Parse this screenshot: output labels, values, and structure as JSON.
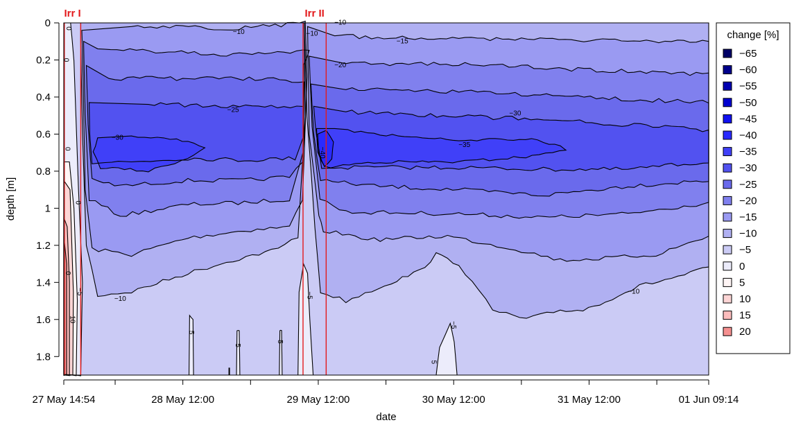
{
  "chart_data": {
    "type": "heatmap",
    "subtype": "filled-contour",
    "title": "",
    "xlabel": "date",
    "ylabel": "depth [m]",
    "x_ticks": [
      "27 May 14:54",
      "28 May 12:00",
      "29 May 12:00",
      "30 May 12:00",
      "31 May 12:00",
      "01 Jun 09:14"
    ],
    "x_tick_hours": [
      0,
      21.1,
      45.1,
      69.1,
      93.1,
      114.3
    ],
    "x_minor_tick_hours": [
      9.1,
      33.1,
      57.1,
      81.1,
      105.1
    ],
    "xlim_hours": [
      0,
      114.3
    ],
    "y_ticks": [
      "0",
      "0.2",
      "0.4",
      "0.6",
      "0.8",
      "1",
      "1.2",
      "1.4",
      "1.6",
      "1.8"
    ],
    "y_tick_values": [
      0,
      0.2,
      0.4,
      0.6,
      0.8,
      1.0,
      1.2,
      1.4,
      1.6,
      1.8
    ],
    "ylim": [
      1.9,
      0
    ],
    "y_reversed": true,
    "legend": {
      "title": "change [%]",
      "position": "right",
      "levels": [
        "−65",
        "−60",
        "−55",
        "−50",
        "−45",
        "−40",
        "−35",
        "−30",
        "−25",
        "−20",
        "−15",
        "−10",
        "−5",
        "0",
        "5",
        "10",
        "15",
        "20"
      ],
      "colors": [
        "#000066",
        "#00008b",
        "#0000b0",
        "#0000d0",
        "#1010f0",
        "#2a2aff",
        "#4040f8",
        "#5252f0",
        "#6a6aec",
        "#8080ee",
        "#9a9af2",
        "#b0b0f2",
        "#cbcbf5",
        "#ececfb",
        "#fff5f5",
        "#fdd5d5",
        "#fbbcbc",
        "#f59090"
      ]
    },
    "events": [
      {
        "label": "Irr I",
        "start_hour": 0.1,
        "end_hour": 3.0,
        "color": "#e31a1c"
      },
      {
        "label": "Irr II",
        "start_hour": 42.4,
        "end_hour": 46.5,
        "color": "#e31a1c"
      }
    ],
    "contour_labels": [
      {
        "text": "−10",
        "hour": 10.0,
        "depth": 1.49
      },
      {
        "text": "−25",
        "hour": 30.0,
        "depth": 0.47
      },
      {
        "text": "−30",
        "hour": 9.5,
        "depth": 0.62
      },
      {
        "text": "−10",
        "hour": 31.0,
        "depth": 0.05
      },
      {
        "text": "−10",
        "hour": 44.0,
        "depth": 0.06
      },
      {
        "text": "−10",
        "hour": 49.0,
        "depth": 0.0
      },
      {
        "text": "−15",
        "hour": 60.0,
        "depth": 0.1
      },
      {
        "text": "−20",
        "hour": 49.0,
        "depth": 0.23
      },
      {
        "text": "−30",
        "hour": 80.0,
        "depth": 0.49
      },
      {
        "text": "−35",
        "hour": 71.0,
        "depth": 0.66
      },
      {
        "text": "−40",
        "hour": 45.8,
        "depth": 0.7
      },
      {
        "text": "−10",
        "hour": 101.0,
        "depth": 1.45
      },
      {
        "text": "−5",
        "hour": 2.8,
        "depth": 1.45
      },
      {
        "text": "−5",
        "hour": 43.5,
        "depth": 1.47
      },
      {
        "text": "−5",
        "hour": 69.0,
        "depth": 1.63
      },
      {
        "text": "5",
        "hour": 22.6,
        "depth": 1.67
      },
      {
        "text": "5",
        "hour": 30.8,
        "depth": 1.74
      },
      {
        "text": "5",
        "hour": 38.3,
        "depth": 1.72
      },
      {
        "text": "5",
        "hour": 65.5,
        "depth": 1.83
      },
      {
        "text": "10",
        "hour": 1.5,
        "depth": 1.6
      },
      {
        "text": "0",
        "hour": 0.8,
        "depth": 0.03
      },
      {
        "text": "0",
        "hour": 0.4,
        "depth": 0.2
      },
      {
        "text": "0",
        "hour": 0.6,
        "depth": 0.68
      },
      {
        "text": "0",
        "hour": 2.5,
        "depth": 0.97
      },
      {
        "text": "0",
        "hour": 0.7,
        "depth": 1.35
      }
    ]
  }
}
